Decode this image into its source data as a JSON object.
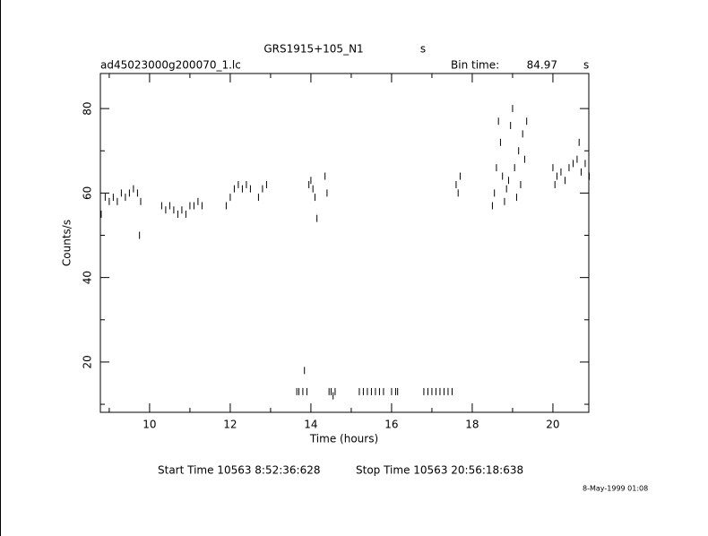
{
  "chart_data": {
    "type": "scatter",
    "title": "GRS1915+105_N1",
    "title_unit": "s",
    "subtitle": "ad45023000g200070_1.lc",
    "bin_time_label": "Bin time:",
    "bin_time": "84.97",
    "bin_time_unit": "s",
    "xlabel": "Time (hours)",
    "ylabel": "Counts/s",
    "start_time": "Start Time 10563  8:52:36:628",
    "stop_time": "Stop Time 10563 20:56:18:638",
    "footer_date": "8-May-1999 01:08",
    "color": "#000000",
    "xlim": [
      8.78,
      20.89
    ],
    "ylim": [
      8.1,
      88.3
    ],
    "xticks": [
      10,
      12,
      14,
      16,
      18,
      20
    ],
    "yticks": [
      20,
      40,
      60,
      80
    ],
    "minor_xticks": [
      9,
      11,
      13,
      15,
      17,
      19
    ],
    "minor_yticks": [
      10,
      30,
      50,
      70
    ],
    "x": [
      8.8,
      8.9,
      9.0,
      9.1,
      9.2,
      9.3,
      9.4,
      9.5,
      9.6,
      9.7,
      9.75,
      9.78,
      10.3,
      10.4,
      10.5,
      10.6,
      10.7,
      10.8,
      10.9,
      11.0,
      11.1,
      11.2,
      11.3,
      11.9,
      12.0,
      12.1,
      12.2,
      12.3,
      12.4,
      12.5,
      12.7,
      12.8,
      12.9,
      13.65,
      13.7,
      13.8,
      13.84,
      13.9,
      13.95,
      14.0,
      14.05,
      14.1,
      14.15,
      14.35,
      14.4,
      14.45,
      14.5,
      14.55,
      14.6,
      15.2,
      15.3,
      15.4,
      15.5,
      15.6,
      15.7,
      15.8,
      16.0,
      16.1,
      16.15,
      16.8,
      16.9,
      17.0,
      17.1,
      17.2,
      17.3,
      17.4,
      17.5,
      17.6,
      17.65,
      17.7,
      18.5,
      18.55,
      18.6,
      18.65,
      18.7,
      18.75,
      18.8,
      18.85,
      18.9,
      18.95,
      19.0,
      19.05,
      19.1,
      19.15,
      19.2,
      19.25,
      19.3,
      19.35,
      20.0,
      20.05,
      20.1,
      20.2,
      20.3,
      20.4,
      20.5,
      20.6,
      20.65,
      20.7,
      20.8,
      20.9
    ],
    "values": [
      55,
      59,
      58,
      59,
      58,
      60,
      59,
      60,
      61,
      60,
      50,
      58,
      57,
      56,
      57,
      56,
      55,
      56,
      55,
      57,
      57,
      58,
      57,
      57,
      59,
      61,
      62,
      61,
      62,
      61,
      59,
      61,
      62,
      13,
      13,
      13,
      18,
      13,
      62,
      63,
      61,
      59,
      54,
      64,
      60,
      13,
      13,
      12,
      13,
      13,
      13,
      13,
      13,
      13,
      13,
      13,
      13,
      13,
      13,
      13,
      13,
      13,
      13,
      13,
      13,
      13,
      13,
      62,
      60,
      64,
      57,
      60,
      66,
      77,
      72,
      64,
      58,
      61,
      63,
      76,
      80,
      66,
      59,
      70,
      62,
      74,
      68,
      77,
      66,
      62,
      64,
      65,
      63,
      66,
      67,
      68,
      72,
      65,
      67,
      64
    ]
  }
}
